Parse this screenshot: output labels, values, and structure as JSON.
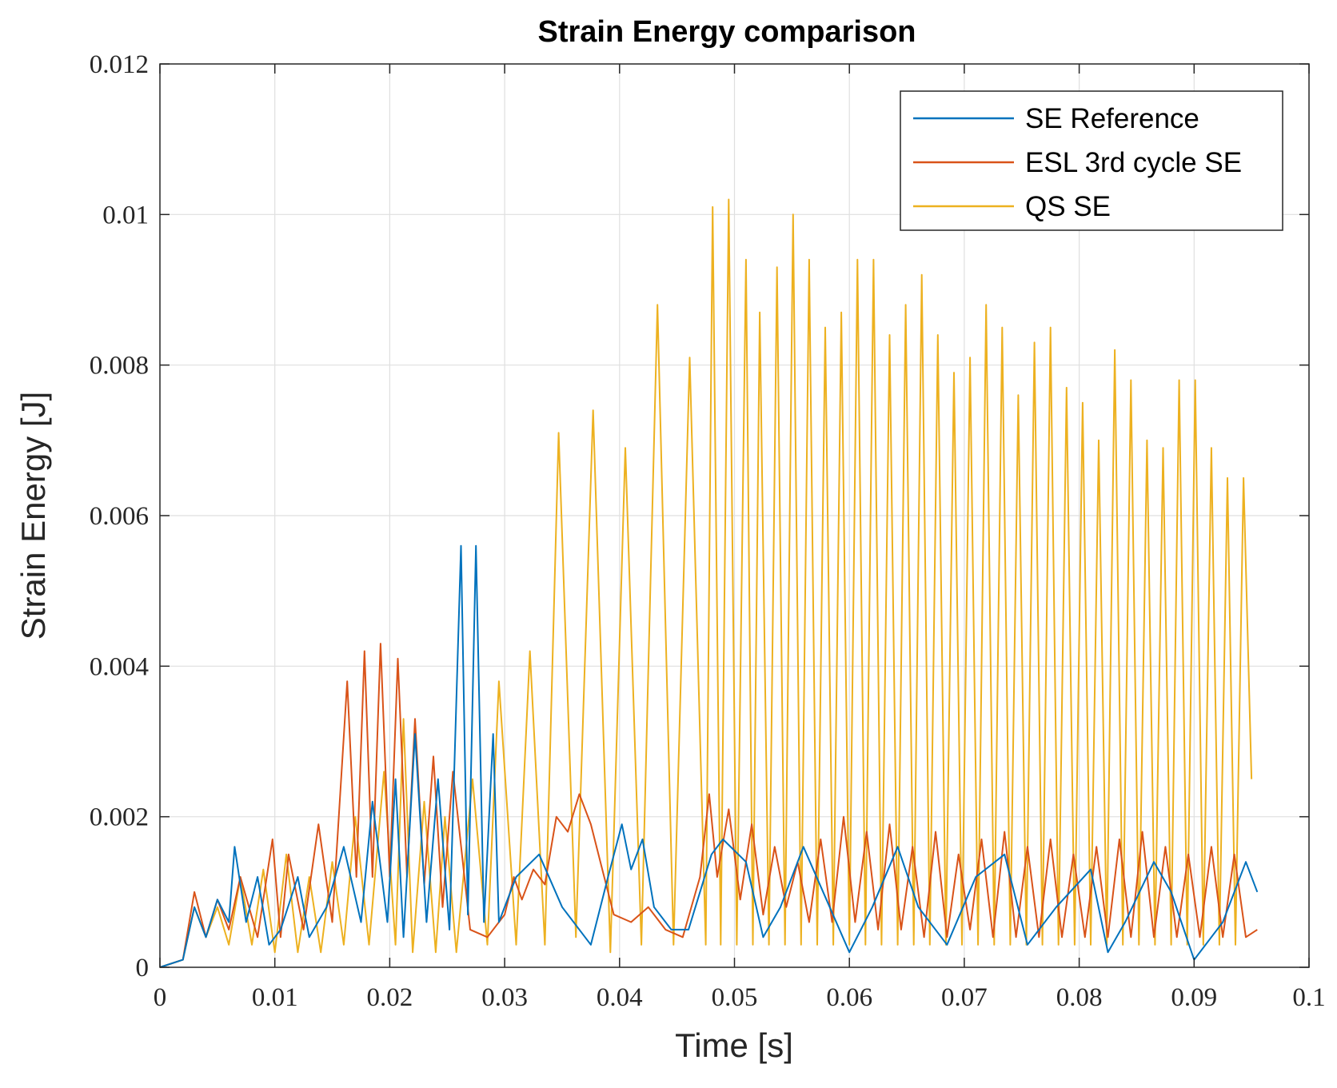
{
  "chart_data": {
    "type": "line",
    "title": "Strain Energy comparison",
    "xlabel": "Time [s]",
    "ylabel": "Strain Energy [J]",
    "xlim": [
      0,
      0.1
    ],
    "ylim": [
      0,
      0.012
    ],
    "xticks": [
      0,
      0.01,
      0.02,
      0.03,
      0.04,
      0.05,
      0.06,
      0.07,
      0.08,
      0.09,
      0.1
    ],
    "xtick_labels": [
      "0",
      "0.01",
      "0.02",
      "0.03",
      "0.04",
      "0.05",
      "0.06",
      "0.07",
      "0.08",
      "0.09",
      "0.1"
    ],
    "yticks": [
      0,
      0.002,
      0.004,
      0.006,
      0.008,
      0.01,
      0.012
    ],
    "ytick_labels": [
      "0",
      "0.002",
      "0.004",
      "0.006",
      "0.008",
      "0.01",
      "0.012"
    ],
    "grid": true,
    "legend_position": "top-right",
    "series": [
      {
        "name": "SE Reference",
        "color": "#0072BD",
        "x": [
          0,
          0.002,
          0.003,
          0.004,
          0.005,
          0.006,
          0.0065,
          0.0075,
          0.0085,
          0.0095,
          0.0105,
          0.012,
          0.013,
          0.0145,
          0.016,
          0.0175,
          0.0185,
          0.0198,
          0.0205,
          0.0212,
          0.0222,
          0.0232,
          0.0242,
          0.0252,
          0.0262,
          0.0268,
          0.0275,
          0.0282,
          0.029,
          0.0295,
          0.031,
          0.033,
          0.035,
          0.0375,
          0.039,
          0.0402,
          0.041,
          0.042,
          0.043,
          0.0445,
          0.046,
          0.048,
          0.049,
          0.051,
          0.0525,
          0.054,
          0.056,
          0.058,
          0.06,
          0.062,
          0.0642,
          0.066,
          0.0685,
          0.071,
          0.0735,
          0.0755,
          0.078,
          0.081,
          0.0825,
          0.084,
          0.0865,
          0.088,
          0.09,
          0.0925,
          0.0945,
          0.0955
        ],
        "values": [
          0,
          0.0001,
          0.0008,
          0.0004,
          0.0009,
          0.0006,
          0.0016,
          0.0006,
          0.0012,
          0.0003,
          0.0005,
          0.0012,
          0.0004,
          0.0008,
          0.0016,
          0.0006,
          0.0022,
          0.0006,
          0.0025,
          0.0004,
          0.0031,
          0.0006,
          0.0025,
          0.0005,
          0.0056,
          0.0007,
          0.0056,
          0.0006,
          0.0031,
          0.0006,
          0.0012,
          0.0015,
          0.0008,
          0.0003,
          0.0012,
          0.0019,
          0.0013,
          0.0017,
          0.0008,
          0.0005,
          0.0005,
          0.0015,
          0.0017,
          0.0014,
          0.0004,
          0.0008,
          0.0016,
          0.0009,
          0.0002,
          0.0008,
          0.0016,
          0.0008,
          0.0003,
          0.0012,
          0.0015,
          0.0003,
          0.0008,
          0.0013,
          0.0002,
          0.0006,
          0.0014,
          0.001,
          0.0001,
          0.0006,
          0.0014,
          0.001
        ]
      },
      {
        "name": "ESL 3rd cycle SE",
        "color": "#D95319",
        "x": [
          0,
          0.002,
          0.003,
          0.004,
          0.005,
          0.006,
          0.007,
          0.0085,
          0.0098,
          0.0105,
          0.0112,
          0.0125,
          0.0138,
          0.015,
          0.0163,
          0.0171,
          0.0178,
          0.0185,
          0.0192,
          0.02,
          0.0207,
          0.0215,
          0.0222,
          0.023,
          0.0238,
          0.0246,
          0.0255,
          0.027,
          0.0285,
          0.03,
          0.0308,
          0.0315,
          0.0325,
          0.0335,
          0.0345,
          0.0355,
          0.0365,
          0.0375,
          0.0385,
          0.0395,
          0.041,
          0.0425,
          0.044,
          0.0455,
          0.047,
          0.0478,
          0.0485,
          0.0495,
          0.0505,
          0.0515,
          0.0525,
          0.0535,
          0.0545,
          0.0555,
          0.0565,
          0.0575,
          0.0585,
          0.0595,
          0.0605,
          0.0615,
          0.0625,
          0.0635,
          0.0645,
          0.0655,
          0.0665,
          0.0675,
          0.0685,
          0.0695,
          0.0705,
          0.0715,
          0.0725,
          0.0735,
          0.0745,
          0.0755,
          0.0765,
          0.0775,
          0.0785,
          0.0795,
          0.0805,
          0.0815,
          0.0825,
          0.0835,
          0.0845,
          0.0855,
          0.0865,
          0.0875,
          0.0885,
          0.0895,
          0.0905,
          0.0915,
          0.0925,
          0.0935,
          0.0945,
          0.0955
        ],
        "values": [
          0,
          0.0001,
          0.001,
          0.0004,
          0.0009,
          0.0005,
          0.0012,
          0.0004,
          0.0017,
          0.0004,
          0.0015,
          0.0005,
          0.0019,
          0.0006,
          0.0038,
          0.0012,
          0.0042,
          0.0012,
          0.0043,
          0.0012,
          0.0041,
          0.0012,
          0.0033,
          0.0011,
          0.0028,
          0.0008,
          0.0026,
          0.0005,
          0.0004,
          0.0007,
          0.0012,
          0.0009,
          0.0013,
          0.0011,
          0.002,
          0.0018,
          0.0023,
          0.0019,
          0.0013,
          0.0007,
          0.0006,
          0.0008,
          0.0005,
          0.0004,
          0.0012,
          0.0023,
          0.0012,
          0.0021,
          0.0009,
          0.0019,
          0.0007,
          0.0016,
          0.0008,
          0.0014,
          0.0006,
          0.0017,
          0.0006,
          0.002,
          0.0006,
          0.0018,
          0.0005,
          0.0019,
          0.0005,
          0.0016,
          0.0004,
          0.0018,
          0.0004,
          0.0015,
          0.0005,
          0.0017,
          0.0004,
          0.0018,
          0.0004,
          0.0016,
          0.0004,
          0.0017,
          0.0004,
          0.0015,
          0.0004,
          0.0016,
          0.0004,
          0.0017,
          0.0004,
          0.0018,
          0.0004,
          0.0016,
          0.0004,
          0.0015,
          0.0004,
          0.0016,
          0.0004,
          0.0015,
          0.0004,
          0.0005
        ]
      },
      {
        "name": "QS SE",
        "color": "#EDB120",
        "x": [
          0,
          0.002,
          0.003,
          0.004,
          0.005,
          0.006,
          0.007,
          0.008,
          0.009,
          0.01,
          0.011,
          0.012,
          0.013,
          0.014,
          0.015,
          0.016,
          0.017,
          0.0182,
          0.0195,
          0.0205,
          0.0212,
          0.022,
          0.023,
          0.024,
          0.0248,
          0.0258,
          0.0272,
          0.0285,
          0.0295,
          0.031,
          0.0322,
          0.0335,
          0.0347,
          0.0362,
          0.0377,
          0.0392,
          0.0405,
          0.0419,
          0.0433,
          0.0447,
          0.0461,
          0.0475,
          0.0481,
          0.0488,
          0.0495,
          0.0502,
          0.051,
          0.0516,
          0.0522,
          0.053,
          0.0537,
          0.0544,
          0.0551,
          0.0558,
          0.0565,
          0.0572,
          0.0579,
          0.0586,
          0.0593,
          0.06,
          0.0607,
          0.0614,
          0.0621,
          0.0628,
          0.0635,
          0.0642,
          0.0649,
          0.0656,
          0.0663,
          0.067,
          0.0677,
          0.0684,
          0.0691,
          0.0698,
          0.0705,
          0.0712,
          0.0719,
          0.0726,
          0.0733,
          0.074,
          0.0747,
          0.0754,
          0.0761,
          0.0768,
          0.0775,
          0.0782,
          0.0789,
          0.0796,
          0.0803,
          0.081,
          0.0817,
          0.0824,
          0.0831,
          0.0838,
          0.0845,
          0.0852,
          0.0859,
          0.0866,
          0.0873,
          0.088,
          0.0887,
          0.0894,
          0.0901,
          0.0908,
          0.0915,
          0.0922,
          0.0929,
          0.0936,
          0.0943,
          0.095
        ],
        "values": [
          0,
          0.0001,
          0.0008,
          0.0004,
          0.0008,
          0.0003,
          0.0012,
          0.0003,
          0.0013,
          0.0002,
          0.0015,
          0.0002,
          0.0012,
          0.0002,
          0.0014,
          0.0003,
          0.002,
          0.0003,
          0.0026,
          0.0003,
          0.0033,
          0.0002,
          0.0022,
          0.0002,
          0.002,
          0.0002,
          0.0025,
          0.0003,
          0.0038,
          0.0003,
          0.0042,
          0.0003,
          0.0071,
          0.0004,
          0.0074,
          0.0002,
          0.0069,
          0.0003,
          0.0088,
          0.0003,
          0.0081,
          0.0003,
          0.0101,
          0.0003,
          0.0102,
          0.0003,
          0.0094,
          0.0003,
          0.0087,
          0.0003,
          0.0093,
          0.0003,
          0.01,
          0.0003,
          0.0094,
          0.0003,
          0.0085,
          0.0003,
          0.0087,
          0.0003,
          0.0094,
          0.0003,
          0.0094,
          0.0003,
          0.0084,
          0.0003,
          0.0088,
          0.0003,
          0.0092,
          0.0003,
          0.0084,
          0.0003,
          0.0079,
          0.0003,
          0.0081,
          0.0003,
          0.0088,
          0.0003,
          0.0085,
          0.0003,
          0.0076,
          0.0003,
          0.0083,
          0.0003,
          0.0085,
          0.0003,
          0.0077,
          0.0003,
          0.0075,
          0.0003,
          0.007,
          0.0003,
          0.0082,
          0.0003,
          0.0078,
          0.0003,
          0.007,
          0.0003,
          0.0069,
          0.0003,
          0.0078,
          0.0003,
          0.0078,
          0.0003,
          0.0069,
          0.0003,
          0.0065,
          0.0003,
          0.0065,
          0.0025
        ]
      }
    ]
  }
}
